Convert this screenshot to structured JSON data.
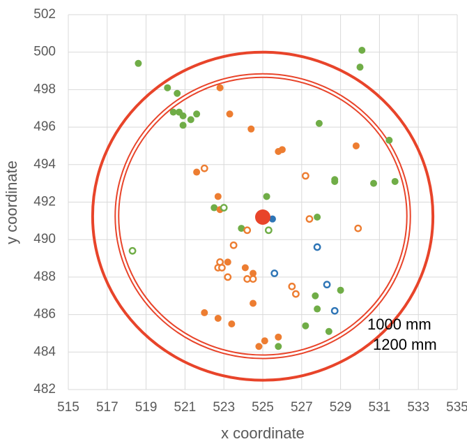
{
  "chart_data": {
    "type": "scatter",
    "xlabel": "x coordinate",
    "ylabel": "y coordinate",
    "xlim": [
      515,
      535
    ],
    "ylim": [
      482,
      502
    ],
    "xticks": [
      515,
      517,
      519,
      521,
      523,
      525,
      527,
      529,
      531,
      533,
      535
    ],
    "yticks": [
      482,
      484,
      486,
      488,
      490,
      492,
      494,
      496,
      498,
      500,
      502
    ],
    "grid": true,
    "series": [
      {
        "color": "#70ad47",
        "filled": true,
        "x": [
          518.6,
          520.1,
          520.6,
          520.4,
          520.7,
          520.9,
          521.3,
          521.6,
          520.9,
          530.1,
          530.0,
          527.9,
          531.5,
          525.2,
          522.5,
          523.9,
          527.8,
          528.7,
          528.7,
          530.7,
          531.8,
          527.7,
          529.0,
          527.8,
          527.2,
          528.4,
          525.8
        ],
        "values": [
          499.4,
          498.1,
          497.8,
          496.8,
          496.8,
          496.6,
          496.4,
          496.7,
          496.1,
          500.1,
          499.2,
          496.2,
          495.3,
          492.3,
          491.7,
          490.6,
          491.2,
          493.2,
          493.1,
          493.0,
          493.1,
          487.0,
          487.3,
          486.3,
          485.4,
          485.1,
          484.3
        ]
      },
      {
        "color": "#ed7d31",
        "filled": true,
        "x": [
          522.8,
          523.3,
          524.4,
          525.8,
          526.0,
          529.8,
          521.6,
          522.7,
          522.8,
          523.2,
          524.1,
          524.5,
          524.5,
          522.0,
          522.7,
          523.4,
          525.1,
          525.8,
          524.8
        ],
        "values": [
          498.1,
          496.7,
          495.9,
          494.7,
          494.8,
          495.0,
          493.6,
          492.3,
          491.6,
          488.8,
          488.5,
          488.2,
          486.6,
          486.1,
          485.8,
          485.5,
          484.6,
          484.8,
          484.3
        ]
      },
      {
        "color": "#2e75b6",
        "filled": true,
        "x": [
          525.5
        ],
        "values": [
          491.1
        ]
      },
      {
        "color": "#70ad47",
        "filled": false,
        "x": [
          518.3,
          523.0,
          525.3
        ],
        "values": [
          489.4,
          491.7,
          490.5
        ]
      },
      {
        "color": "#ed7d31",
        "filled": false,
        "x": [
          522.0,
          527.2,
          527.4,
          529.9,
          524.2,
          523.5,
          522.8,
          522.7,
          522.9,
          523.2,
          524.2,
          524.5,
          526.5,
          526.7
        ],
        "values": [
          493.8,
          493.4,
          491.1,
          490.6,
          490.5,
          489.7,
          488.8,
          488.5,
          488.5,
          488.0,
          487.9,
          487.9,
          487.5,
          487.1
        ]
      },
      {
        "color": "#2e75b6",
        "filled": false,
        "x": [
          527.8,
          525.6,
          528.3,
          528.7
        ],
        "values": [
          489.6,
          488.2,
          487.6,
          486.2
        ]
      },
      {
        "color": "#e8442a",
        "filled": true,
        "large": true,
        "x": [
          525.0
        ],
        "values": [
          491.2
        ]
      }
    ],
    "rings": {
      "color": "#e8442a",
      "center": [
        525,
        491.25
      ],
      "items": [
        {
          "name": "1000 mm",
          "r": 7.5,
          "double": true
        },
        {
          "name": "1200 mm",
          "r": 8.75,
          "double": false
        }
      ]
    }
  }
}
